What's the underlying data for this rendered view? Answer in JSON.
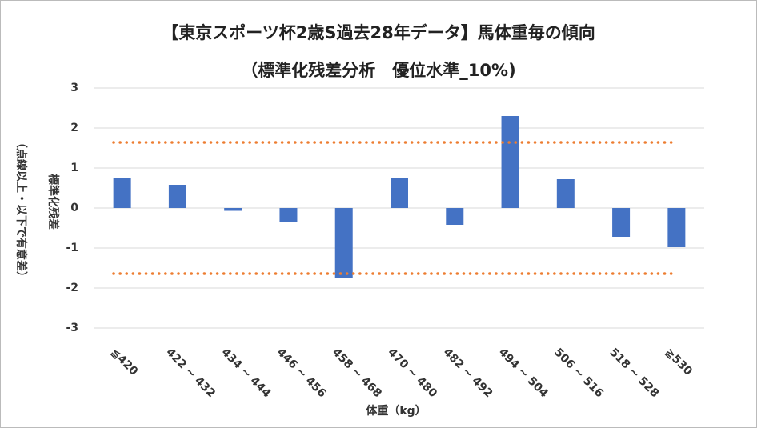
{
  "chart_data": {
    "type": "bar",
    "title": "【東京スポーツ杯2歳S過去28年データ】馬体重毎の傾向",
    "subtitle": "（標準化残差分析　優位水準_10%)",
    "y_label": "標準化残差",
    "y_note": "（点線以上・以下で有意差）",
    "x_label": "体重（kg）",
    "categories": [
      "≦420",
      "422 ~ 432",
      "434 ~ 444",
      "446 ~ 456",
      "458 ~ 468",
      "470 ~ 480",
      "482 ~ 492",
      "494 ~ 504",
      "506 ~ 516",
      "518 ~ 528",
      "≧530"
    ],
    "values": [
      0.76,
      0.58,
      -0.07,
      -0.35,
      -1.74,
      0.74,
      -0.42,
      2.3,
      0.72,
      -0.72,
      -0.98
    ],
    "color": "#4472c4",
    "reference_lines": {
      "values": [
        1.64,
        -1.64
      ],
      "color": "#ed7d31"
    },
    "ylim": [
      -3,
      3
    ],
    "yticks": [
      -3,
      -2,
      -1,
      0,
      1,
      2,
      3
    ],
    "grid": true
  }
}
